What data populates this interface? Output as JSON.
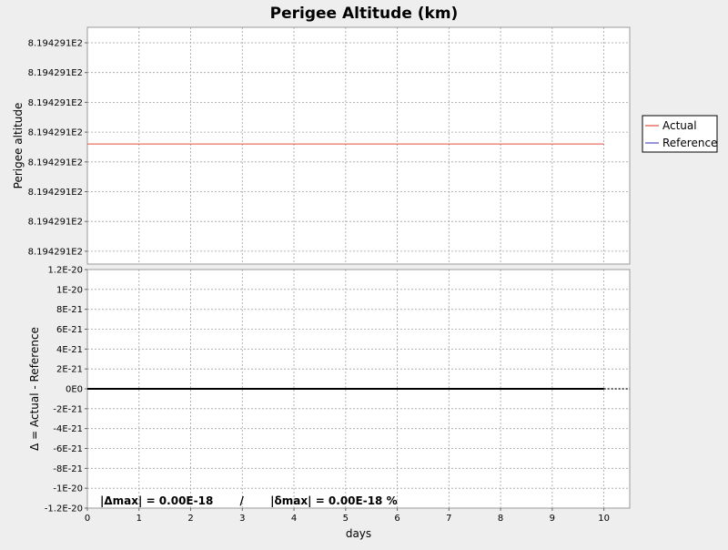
{
  "chart_data": [
    {
      "type": "line",
      "title": "Perigee Altitude (km)",
      "xlabel": "days",
      "ylabel": "Perigee altitude",
      "xlim": [
        0,
        10.5
      ],
      "x_ticks": [
        "0",
        "1",
        "2",
        "3",
        "4",
        "5",
        "6",
        "7",
        "8",
        "9",
        "10"
      ],
      "y_ticks": [
        "8.194291E2",
        "8.194291E2",
        "8.194291E2",
        "8.194291E2",
        "8.194291E2",
        "8.194291E2",
        "8.194291E2",
        "8.194291E2"
      ],
      "grid": true,
      "legend": {
        "placement": "right",
        "entries": [
          "Actual",
          "Reference"
        ]
      },
      "series": [
        {
          "name": "Actual",
          "color": "#e0503c",
          "x": [
            0,
            10
          ],
          "y": [
            819.4291,
            819.4291
          ]
        },
        {
          "name": "Reference",
          "color": "#5050c8",
          "x": [
            0,
            10
          ],
          "y": [
            819.4291,
            819.4291
          ]
        }
      ]
    },
    {
      "type": "line",
      "title": "",
      "xlabel": "days",
      "ylabel": "Δ = Actual - Reference",
      "xlim": [
        0,
        10.5
      ],
      "ylim": [
        -1.2e-20,
        1.2e-20
      ],
      "x_ticks": [
        "0",
        "1",
        "2",
        "3",
        "4",
        "5",
        "6",
        "7",
        "8",
        "9",
        "10"
      ],
      "y_ticks": [
        "1.2E-20",
        "1E-20",
        "8E-21",
        "6E-21",
        "4E-21",
        "2E-21",
        "0E0",
        "-2E-21",
        "-4E-21",
        "-6E-21",
        "-8E-21",
        "-1E-20",
        "-1.2E-20"
      ],
      "grid": true,
      "annotation": "|Δmax| = 0.00E-18       /       |δmax| = 0.00E-18 %",
      "series": [
        {
          "name": "",
          "color": "#000000",
          "x": [
            0,
            10
          ],
          "y": [
            0,
            0
          ]
        }
      ]
    }
  ]
}
